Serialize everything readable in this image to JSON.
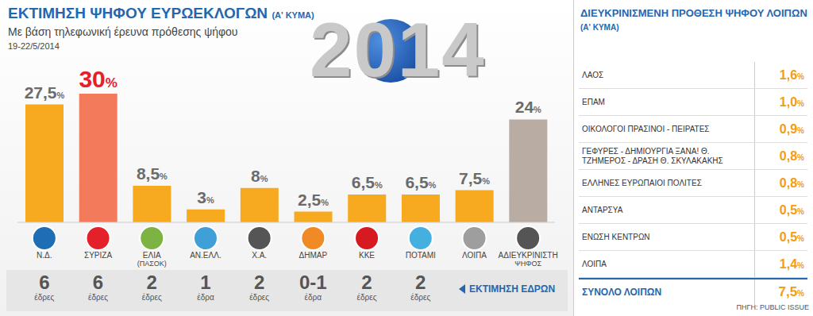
{
  "chart_data": {
    "type": "bar",
    "title": "ΕΚΤΙΜΗΣΗ ΨΗΦΟΥ ΕΥΡΩΕΚΛΟΓΩΝ",
    "title_suffix": "(Α' ΚΥΜΑ)",
    "subtitle": "Με βάση τηλεφωνική έρευνα πρόθεσης ψήφου",
    "date": "19-22/5/2014",
    "decoration": "2014",
    "categories": [
      "Ν.Δ.",
      "ΣΥΡΙΖΑ",
      "ΕΛΙΑ (ΠΑΣΟΚ)",
      "ΑΝ.ΕΛΛ.",
      "Χ.Α.",
      "ΔΗΜΑΡ",
      "ΚΚΕ",
      "ΠΟΤΑΜΙ",
      "ΛΟΙΠΑ",
      "ΑΔΙΕΥΚΡΙΝΙΣΤΗ ΨΗΦΟΣ"
    ],
    "values": [
      27.5,
      30,
      8.5,
      3,
      8,
      2.5,
      6.5,
      6.5,
      7.5,
      24
    ],
    "value_labels": [
      "27,5%",
      "30%",
      "8,5%",
      "3%",
      "8%",
      "2,5%",
      "6,5%",
      "6,5%",
      "7,5%",
      "24%"
    ],
    "colors": [
      "#f7a91f",
      "#f37b5c",
      "#f7a91f",
      "#f7a91f",
      "#f7a91f",
      "#f7a91f",
      "#f7a91f",
      "#f7a91f",
      "#f7a91f",
      "#b9aca3"
    ],
    "data_labels": true,
    "ylim": [
      0,
      30
    ],
    "grid": false,
    "tick_labels": "x",
    "seats": [
      6,
      6,
      2,
      1,
      2,
      "0-1",
      2,
      2,
      null,
      null
    ],
    "seat_units": [
      "έδρες",
      "έδρες",
      "έδρες",
      "έδρα",
      "έδρες",
      "έδρα",
      "έδρες",
      "έδρες",
      null,
      null
    ],
    "seats_label": "ΕΚΤΙΜΗΣΗ ΕΔΡΩΝ"
  },
  "others_table": {
    "title": "ΔΙΕΥΚΡΙΝΙΣΜΕΝΗ ΠΡΟΘΕΣΗ ΨΗΦΟΥ ΛΟΙΠΩΝ",
    "title_suffix": "(Α' ΚΥΜΑ)",
    "rows": [
      {
        "label": "ΛΑΟΣ",
        "value": 1.6,
        "value_label": "1,6%"
      },
      {
        "label": "ΕΠΑΜ",
        "value": 1.0,
        "value_label": "1,0%"
      },
      {
        "label": "ΟΙΚΟΛΟΓΟΙ ΠΡΑΣΙΝΟΙ - ΠΕΙΡΑΤΕΣ",
        "value": 0.9,
        "value_label": "0,9%"
      },
      {
        "label": "ΓΕΦΥΡΕΣ - ΔΗΜΙΟΥΡΓΙΑ ΞΑΝΑ! Θ. ΤΖΗΜΕΡΟΣ - ΔΡΑΣΗ Θ. ΣΚΥΛΑΚΑΚΗΣ",
        "value": 0.8,
        "value_label": "0,8%"
      },
      {
        "label": "ΕΛΛΗΝΕΣ ΕΥΡΩΠΑΙΟΙ ΠΟΛΙΤΕΣ",
        "value": 0.8,
        "value_label": "0,8%"
      },
      {
        "label": "ΑΝΤΑΡΣΥΑ",
        "value": 0.5,
        "value_label": "0,5%"
      },
      {
        "label": "ΕΝΩΣΗ ΚΕΝΤΡΩΝ",
        "value": 0.5,
        "value_label": "0,5%"
      },
      {
        "label": "ΛΟΙΠΑ",
        "value": 1.4,
        "value_label": "1,4%"
      }
    ],
    "total": {
      "label": "ΣΥΝΟΛΟ ΛΟΙΠΩΝ",
      "value": 7.5,
      "value_label": "7,5%"
    }
  },
  "source": "ΠΗΓΗ: PUBLIC ISSUE"
}
